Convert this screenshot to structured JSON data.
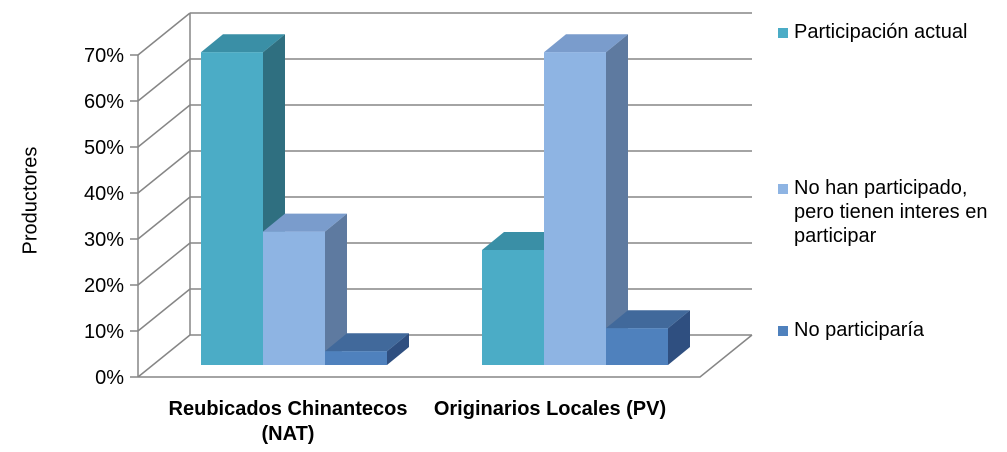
{
  "chart_data": {
    "type": "bar",
    "categories": [
      "Reubicados Chinantecos (NAT)",
      "Originarios Locales (PV)"
    ],
    "series": [
      {
        "name": "Participación actual",
        "values": [
          68,
          25
        ]
      },
      {
        "name": "No han participado, pero tienen interes en participar",
        "values": [
          29,
          68
        ]
      },
      {
        "name": "No participaría",
        "values": [
          3,
          8
        ]
      }
    ],
    "ylabel": "Productores",
    "xlabel": "",
    "ylim": [
      0,
      70
    ],
    "yticks": [
      "0%",
      "10%",
      "20%",
      "30%",
      "40%",
      "50%",
      "60%",
      "70%"
    ],
    "legend_position": "right",
    "grid": true,
    "colors": {
      "series": [
        "#4bacc6",
        "#8eb4e3",
        "#4f81bd"
      ],
      "series_side": [
        "#2f6f80",
        "#5e7aa0",
        "#2f4f80"
      ],
      "series_top": [
        "#3a8fa6",
        "#7a9ccc",
        "#41699b"
      ],
      "grid": "#868686"
    }
  }
}
